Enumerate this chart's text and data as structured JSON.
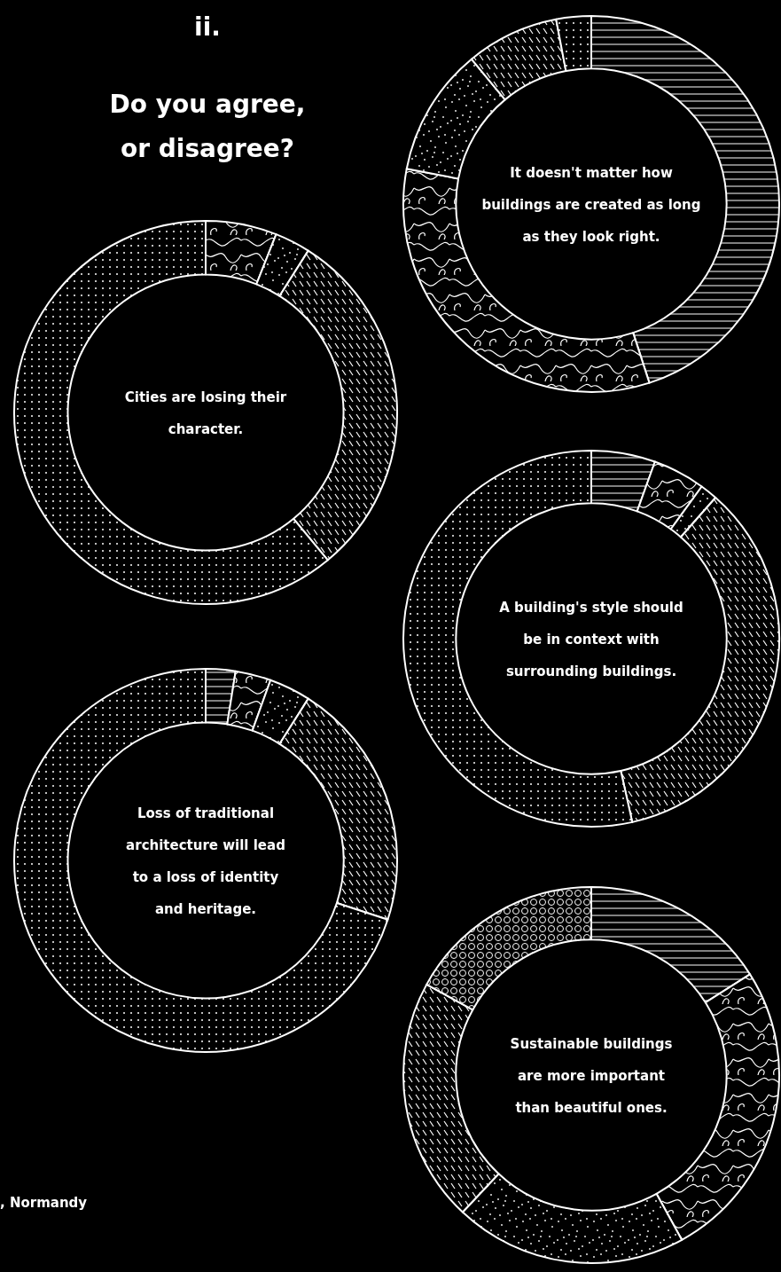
{
  "chart_data": [
    {
      "type": "other",
      "title": "ii.",
      "subtitle": "Do you agree, or disagree?",
      "annotations": [
        ", Normandy"
      ]
    },
    {
      "type": "donut",
      "title": "It doesn't matter how buildings are created as long as they look right.",
      "categories": [
        null,
        null,
        null,
        null,
        null,
        null
      ],
      "values": [
        45,
        33,
        11,
        8,
        3,
        0
      ],
      "colors": [
        "#ffffff",
        "#ffffff",
        "#ffffff",
        "#ffffff",
        "#ffffff",
        "#ffffff"
      ]
    },
    {
      "type": "donut",
      "title": "Cities are losing their character.",
      "categories": [
        null,
        null,
        null,
        null,
        null,
        null
      ],
      "values": [
        0,
        6,
        3,
        30,
        61,
        0
      ],
      "colors": [
        "#ffffff",
        "#ffffff",
        "#ffffff",
        "#ffffff",
        "#ffffff",
        "#ffffff"
      ]
    },
    {
      "type": "donut",
      "title": "A building's style should be in context with surrounding buildings.",
      "categories": [
        null,
        null,
        null,
        null,
        null,
        null
      ],
      "values": [
        5.5,
        4.5,
        1.5,
        35,
        53.5,
        0
      ],
      "colors": [
        "#ffffff",
        "#ffffff",
        "#ffffff",
        "#ffffff",
        "#ffffff",
        "#ffffff"
      ]
    },
    {
      "type": "donut",
      "title": "Loss of traditional architecture will lead to a loss of identity and heritage.",
      "categories": [
        null,
        null,
        null,
        null,
        null,
        null
      ],
      "values": [
        2.5,
        3,
        3.5,
        21,
        70,
        0
      ],
      "colors": [
        "#ffffff",
        "#ffffff",
        "#ffffff",
        "#ffffff",
        "#ffffff",
        "#ffffff"
      ]
    },
    {
      "type": "donut",
      "title": "Sustainable buildings are more important than beautiful ones.",
      "categories": [
        null,
        null,
        null,
        null,
        null,
        null
      ],
      "values": [
        16,
        26,
        20,
        21,
        0,
        17
      ],
      "colors": [
        "#ffffff",
        "#ffffff",
        "#ffffff",
        "#ffffff",
        "#ffffff",
        "#ffffff"
      ]
    }
  ]
}
